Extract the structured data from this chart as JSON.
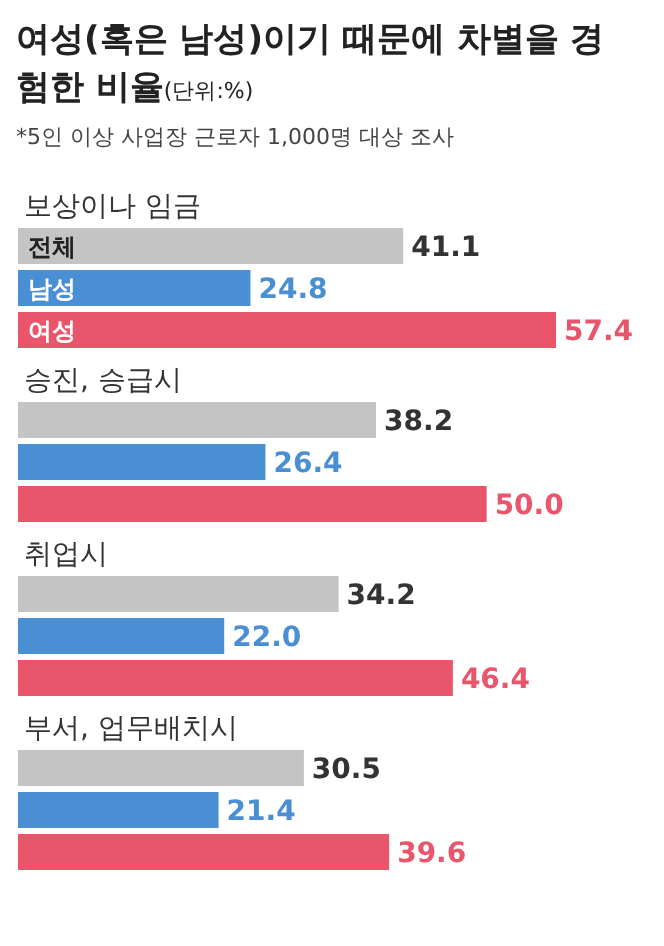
{
  "chart_data": {
    "type": "bar",
    "orientation": "horizontal",
    "title": "여성(혹은 남성)이기 때문에 차별을 경험한 비율",
    "subtitle": "(단위:%)",
    "annotations": [
      "*5인 이상 사업장 근로자 1,000명 대상 조사"
    ],
    "categories": [
      "보상이나 임금",
      "승진, 승급시",
      "취업시",
      "부서, 업무배치시"
    ],
    "series": [
      {
        "name": "전체",
        "color": "#c4c4c4",
        "values": [
          41.1,
          38.2,
          34.2,
          30.5
        ],
        "value_labels": [
          "41.1",
          "38.2",
          "34.2",
          "30.5"
        ]
      },
      {
        "name": "남성",
        "color": "#4a8fd4",
        "values": [
          24.8,
          26.4,
          22.0,
          21.4
        ],
        "value_labels": [
          "24.8",
          "26.4",
          "22.0",
          "21.4"
        ]
      },
      {
        "name": "여성",
        "color": "#e9566c",
        "values": [
          57.4,
          50.0,
          46.4,
          39.6
        ],
        "value_labels": [
          "57.4",
          "50.0",
          "46.4",
          "39.6"
        ]
      }
    ]
  }
}
